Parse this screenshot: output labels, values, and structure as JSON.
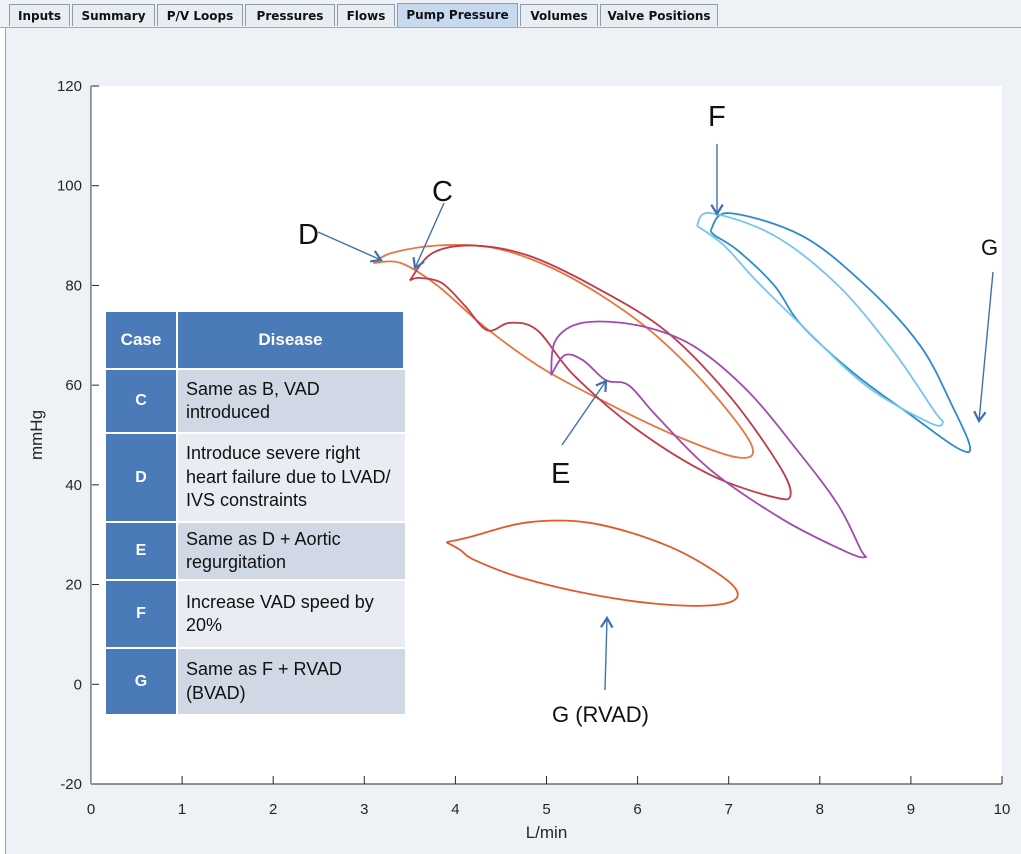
{
  "tabs": [
    {
      "label": "Inputs"
    },
    {
      "label": "Summary"
    },
    {
      "label": "P/V Loops"
    },
    {
      "label": "Pressures"
    },
    {
      "label": "Flows"
    },
    {
      "label": "Pump Pressure",
      "active": true
    },
    {
      "label": "Volumes"
    },
    {
      "label": "Valve Positions"
    }
  ],
  "table": {
    "headers": [
      "Case",
      "Disease"
    ],
    "rows": [
      {
        "case": "C",
        "disease": "Same as B, VAD introduced"
      },
      {
        "case": "D",
        "disease": "Introduce severe right heart  failure due to LVAD/ IVS constraints"
      },
      {
        "case": "E",
        "disease": "Same as D + Aortic regurgitation"
      },
      {
        "case": "F",
        "disease": "Increase VAD speed by 20%"
      },
      {
        "case": "G",
        "disease": "Same as F + RVAD (BVAD)"
      }
    ]
  },
  "annotations": {
    "C": "C",
    "D": "D",
    "E": "E",
    "F": "F",
    "G": "G",
    "G_RVAD": "G (RVAD)"
  },
  "chart_data": {
    "type": "line",
    "xlabel": "L/min",
    "ylabel": "mmHg",
    "xlim": [
      0,
      10
    ],
    "ylim": [
      -20,
      120
    ],
    "xticks": [
      0,
      1,
      2,
      3,
      4,
      5,
      6,
      7,
      8,
      9,
      10
    ],
    "yticks": [
      -20,
      0,
      20,
      40,
      60,
      80,
      100,
      120
    ],
    "grid": false,
    "series": [
      {
        "case": "D",
        "color": "#e8763f",
        "points": [
          [
            3.1,
            84.5
          ],
          [
            3.3,
            86.5
          ],
          [
            3.8,
            88
          ],
          [
            4.4,
            87.6
          ],
          [
            5.0,
            84
          ],
          [
            5.6,
            78
          ],
          [
            6.2,
            70
          ],
          [
            6.8,
            59
          ],
          [
            7.25,
            48
          ],
          [
            7.1,
            45.5
          ],
          [
            6.4,
            50
          ],
          [
            5.6,
            57
          ],
          [
            4.9,
            64
          ],
          [
            4.3,
            72
          ],
          [
            3.8,
            80
          ],
          [
            3.4,
            84.5
          ],
          [
            3.1,
            84.5
          ]
        ]
      },
      {
        "case": "C",
        "color": "#c03a48",
        "points": [
          [
            3.5,
            81
          ],
          [
            3.75,
            86.5
          ],
          [
            4.2,
            88
          ],
          [
            4.8,
            86
          ],
          [
            5.5,
            80
          ],
          [
            6.3,
            71
          ],
          [
            7.0,
            58
          ],
          [
            7.55,
            44
          ],
          [
            7.68,
            38
          ],
          [
            7.5,
            37.5
          ],
          [
            6.8,
            42
          ],
          [
            6.0,
            51
          ],
          [
            5.3,
            62
          ],
          [
            4.9,
            71
          ],
          [
            4.6,
            72.5
          ],
          [
            4.35,
            71
          ],
          [
            4.1,
            76
          ],
          [
            3.85,
            80.5
          ],
          [
            3.6,
            81.5
          ],
          [
            3.5,
            81
          ]
        ]
      },
      {
        "case": "E",
        "color": "#a04bb0",
        "points": [
          [
            5.05,
            62
          ],
          [
            5.1,
            69
          ],
          [
            5.4,
            72.5
          ],
          [
            6.0,
            72
          ],
          [
            6.6,
            68
          ],
          [
            7.2,
            59
          ],
          [
            7.75,
            47
          ],
          [
            8.2,
            36
          ],
          [
            8.45,
            27
          ],
          [
            8.5,
            25.5
          ],
          [
            8.3,
            26.5
          ],
          [
            7.6,
            33
          ],
          [
            6.8,
            43
          ],
          [
            6.2,
            54
          ],
          [
            5.9,
            60
          ],
          [
            5.65,
            61
          ],
          [
            5.4,
            65
          ],
          [
            5.2,
            66
          ],
          [
            5.05,
            62
          ]
        ]
      },
      {
        "case": "F",
        "color": "#2b8ccb",
        "points": [
          [
            6.8,
            91
          ],
          [
            7.0,
            94.5
          ],
          [
            7.8,
            90
          ],
          [
            8.5,
            80
          ],
          [
            9.1,
            68
          ],
          [
            9.45,
            56
          ],
          [
            9.65,
            47.5
          ],
          [
            9.5,
            47.5
          ],
          [
            9.0,
            54
          ],
          [
            8.4,
            62
          ],
          [
            7.8,
            72
          ],
          [
            7.5,
            80
          ],
          [
            7.1,
            87
          ],
          [
            6.85,
            90
          ],
          [
            6.8,
            91
          ]
        ]
      },
      {
        "case": "F",
        "color": "#74c6ef",
        "points": [
          [
            6.65,
            92
          ],
          [
            6.8,
            94.5
          ],
          [
            7.5,
            90
          ],
          [
            8.2,
            80
          ],
          [
            8.8,
            67
          ],
          [
            9.25,
            55
          ],
          [
            9.35,
            52.5
          ],
          [
            9.2,
            52.5
          ],
          [
            8.5,
            60
          ],
          [
            7.8,
            72
          ],
          [
            7.3,
            81
          ],
          [
            6.95,
            88
          ],
          [
            6.65,
            92
          ]
        ]
      },
      {
        "case": "G (RVAD)",
        "color": "#e35a28",
        "points": [
          [
            3.9,
            28.5
          ],
          [
            4.15,
            29.5
          ],
          [
            4.8,
            32.5
          ],
          [
            5.5,
            32.3
          ],
          [
            6.3,
            28
          ],
          [
            6.9,
            22
          ],
          [
            7.1,
            18
          ],
          [
            6.9,
            16
          ],
          [
            6.3,
            16
          ],
          [
            5.5,
            18
          ],
          [
            4.7,
            21.5
          ],
          [
            4.2,
            25
          ],
          [
            4.05,
            27
          ],
          [
            3.9,
            28.5
          ]
        ]
      }
    ]
  }
}
